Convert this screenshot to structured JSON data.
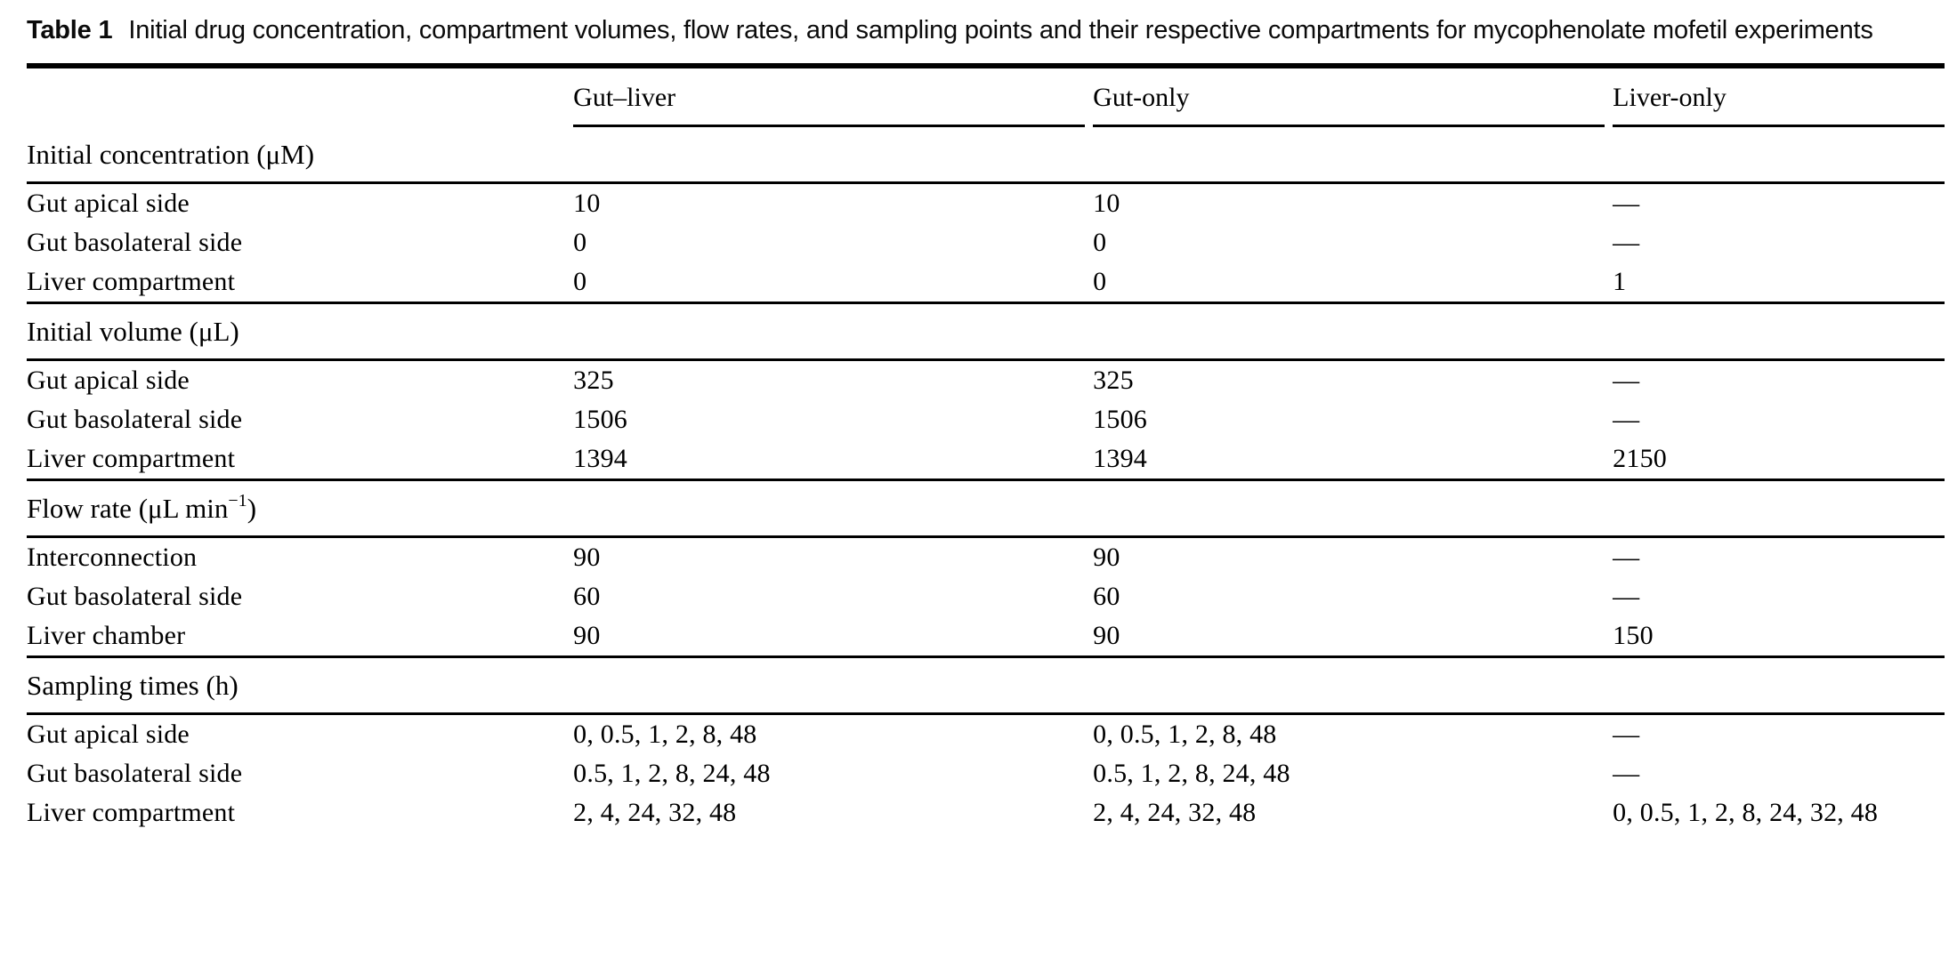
{
  "caption": {
    "label": "Table 1",
    "text": "Initial drug concentration, compartment volumes, flow rates, and sampling points and their respective compartments for mycophenolate mofetil experiments"
  },
  "table": {
    "column_headers": [
      "",
      "Gut–liver",
      "Gut-only",
      "Liver-only"
    ],
    "sections": [
      {
        "title": "Initial concentration (μM)",
        "title_sup": "",
        "title_after": "",
        "rows": [
          {
            "label": "Gut apical side",
            "values": [
              "10",
              "10",
              "—"
            ]
          },
          {
            "label": "Gut basolateral side",
            "values": [
              "0",
              "0",
              "—"
            ]
          },
          {
            "label": "Liver compartment",
            "values": [
              "0",
              "0",
              "1"
            ]
          }
        ]
      },
      {
        "title": "Initial volume (μL)",
        "title_sup": "",
        "title_after": "",
        "rows": [
          {
            "label": "Gut apical side",
            "values": [
              "325",
              "325",
              "—"
            ]
          },
          {
            "label": "Gut basolateral side",
            "values": [
              "1506",
              "1506",
              "—"
            ]
          },
          {
            "label": "Liver compartment",
            "values": [
              "1394",
              "1394",
              "2150"
            ]
          }
        ]
      },
      {
        "title": "Flow rate (μL min",
        "title_sup": "−1",
        "title_after": ")",
        "rows": [
          {
            "label": "Interconnection",
            "values": [
              "90",
              "90",
              "—"
            ]
          },
          {
            "label": "Gut basolateral side",
            "values": [
              "60",
              "60",
              "—"
            ]
          },
          {
            "label": "Liver chamber",
            "values": [
              "90",
              "90",
              "150"
            ]
          }
        ]
      },
      {
        "title": "Sampling times (h)",
        "title_sup": "",
        "title_after": "",
        "rows": [
          {
            "label": "Gut apical side",
            "values": [
              "0, 0.5, 1, 2, 8, 48",
              "0, 0.5, 1, 2, 8, 48",
              "—"
            ]
          },
          {
            "label": "Gut basolateral side",
            "values": [
              "0.5, 1, 2, 8, 24, 48",
              "0.5, 1, 2, 8, 24, 48",
              "—"
            ]
          },
          {
            "label": "Liver compartment",
            "values": [
              "2, 4, 24, 32, 48",
              "2, 4, 24, 32, 48",
              "0, 0.5, 1, 2, 8, 24, 32, 48"
            ]
          }
        ]
      }
    ]
  }
}
